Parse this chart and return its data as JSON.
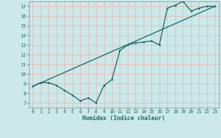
{
  "xlabel": "Humidex (Indice chaleur)",
  "bg_color": "#cce8e8",
  "grid_color": "#e8b8b8",
  "line_color": "#1a6b6b",
  "xlim": [
    -0.5,
    23.5
  ],
  "ylim": [
    6.5,
    17.5
  ],
  "xticks": [
    0,
    1,
    2,
    3,
    4,
    5,
    6,
    7,
    8,
    9,
    10,
    11,
    12,
    13,
    14,
    15,
    16,
    17,
    18,
    19,
    20,
    21,
    22,
    23
  ],
  "yticks": [
    7,
    8,
    9,
    10,
    11,
    12,
    13,
    14,
    15,
    16,
    17
  ],
  "line1_x": [
    0,
    1,
    2,
    3,
    4,
    5,
    6,
    7,
    8,
    9,
    10,
    11,
    12,
    13,
    14,
    15,
    16,
    17,
    18,
    19,
    20,
    21,
    22,
    23
  ],
  "line1_y": [
    8.7,
    9.1,
    9.1,
    8.8,
    8.3,
    7.8,
    7.2,
    7.5,
    7.0,
    8.8,
    9.4,
    12.4,
    13.0,
    13.2,
    13.3,
    13.4,
    13.0,
    16.8,
    17.1,
    17.5,
    16.5,
    16.8,
    17.0,
    17.0
  ],
  "line2_x": [
    0,
    23
  ],
  "line2_y": [
    8.7,
    17.0
  ]
}
